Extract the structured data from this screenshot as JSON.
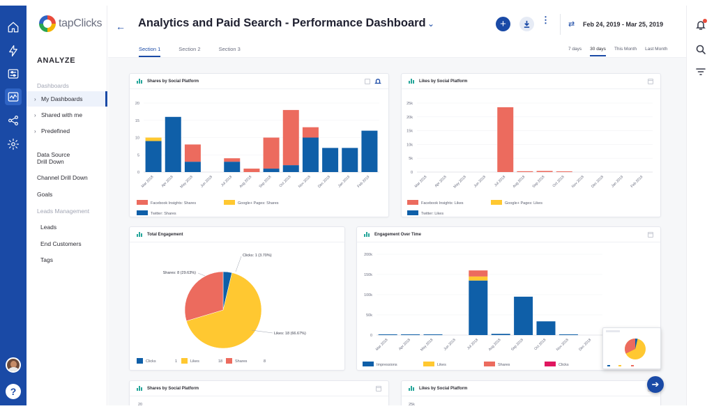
{
  "app": {
    "brand": "tapClicks",
    "section": "ANALYZE",
    "title": "Analytics and Paid Search - Performance Dashboard",
    "date_range": "Feb 24, 2019 - Mar 25, 2019"
  },
  "rail": {
    "icons": [
      "home-icon",
      "bolt-icon",
      "sliders-icon",
      "analytics-icon",
      "share-nodes-icon",
      "gear-icon"
    ],
    "active": 3,
    "help_label": "?"
  },
  "sidebar": {
    "items": [
      {
        "label": "Dashboards",
        "kind": "header"
      },
      {
        "label": "My Dashboards",
        "kind": "sub",
        "active": true
      },
      {
        "label": "Shared with me",
        "kind": "sub"
      },
      {
        "label": "Predefined",
        "kind": "sub"
      },
      {
        "label": "Data Source\nDrill Down",
        "kind": "item"
      },
      {
        "label": "Channel Drill Down",
        "kind": "item"
      },
      {
        "label": "Goals",
        "kind": "item"
      },
      {
        "label": "Leads Management",
        "kind": "header"
      },
      {
        "label": "Leads",
        "kind": "child"
      },
      {
        "label": "End Customers",
        "kind": "child"
      },
      {
        "label": "Tags",
        "kind": "child"
      }
    ]
  },
  "header": {
    "back_label": "←",
    "chevron_label": "⌄",
    "add_label": "+",
    "more_label": "⋮",
    "swap_label": "⇄",
    "tabs": [
      {
        "label": "Section 1",
        "active": true
      },
      {
        "label": "Section 2"
      },
      {
        "label": "Section 3"
      }
    ],
    "ranges": [
      {
        "label": "7 days"
      },
      {
        "label": "30 days",
        "active": true
      },
      {
        "label": "This Month"
      },
      {
        "label": "Last Month"
      }
    ]
  },
  "colors": {
    "brand_blue": "#1a4aa6",
    "series_blue": "#0f5fa8",
    "series_red": "#ec6b5e",
    "series_yellow": "#ffc831",
    "series_pink": "#e0165f"
  },
  "cards": {
    "shares": {
      "title": "Shares by Social Platform"
    },
    "likes": {
      "title": "Likes by Social Platform"
    },
    "engagement": {
      "title": "Total Engagement"
    },
    "over_time": {
      "title": "Engagement Over Time"
    },
    "shares2": {
      "title": "Shares by Social Platform"
    },
    "likes2": {
      "title": "Likes by Social Platform"
    }
  },
  "floating": {
    "next_label": "➔"
  },
  "chart_data": [
    {
      "type": "bar",
      "stacked": true,
      "title": "Shares by Social Platform",
      "categories": [
        "Mar 2018",
        "Apr 2018",
        "May 2018",
        "Jun 2018",
        "Jul 2018",
        "Aug 2018",
        "Sep 2018",
        "Oct 2018",
        "Nov 2018",
        "Dec 2018",
        "Jan 2019",
        "Feb 2019"
      ],
      "ylim": [
        0,
        20
      ],
      "yticks": [
        "0",
        "5",
        "10",
        "15",
        "20"
      ],
      "series": [
        {
          "name": "Twitter: Shares",
          "color": "#0f5fa8",
          "values": [
            9,
            16,
            3,
            0,
            3,
            0,
            1,
            2,
            10,
            7,
            7,
            12
          ]
        },
        {
          "name": "Google+ Pages: Shares",
          "color": "#ffc831",
          "values": [
            1,
            0,
            0,
            0,
            0,
            0,
            0,
            0,
            0,
            0,
            0,
            0
          ]
        },
        {
          "name": "Facebook Insights: Shares",
          "color": "#ec6b5e",
          "values": [
            0,
            0,
            5,
            0,
            1,
            1,
            9,
            16,
            3,
            0,
            0,
            0
          ]
        }
      ],
      "legend_order": [
        "Facebook Insights: Shares",
        "Google+ Pages: Shares",
        "Twitter: Shares"
      ],
      "legend": "bottom"
    },
    {
      "type": "bar",
      "stacked": true,
      "title": "Likes by Social Platform",
      "categories": [
        "Mar 2018",
        "Apr 2018",
        "May 2018",
        "Jun 2018",
        "Jul 2018",
        "Aug 2018",
        "Sep 2018",
        "Oct 2018",
        "Nov 2018",
        "Dec 2018",
        "Jan 2019",
        "Feb 2019"
      ],
      "ylim": [
        0,
        25000
      ],
      "yticks": [
        "0",
        "5k",
        "10k",
        "15k",
        "20k",
        "25k"
      ],
      "series": [
        {
          "name": "Twitter: Likes",
          "color": "#0f5fa8",
          "values": [
            0,
            0,
            0,
            0,
            0,
            0,
            0,
            0,
            0,
            0,
            0,
            0
          ]
        },
        {
          "name": "Google+ Pages: Likes",
          "color": "#ffc831",
          "values": [
            0,
            0,
            0,
            0,
            0,
            0,
            0,
            0,
            0,
            0,
            0,
            0
          ]
        },
        {
          "name": "Facebook Insights: Likes",
          "color": "#ec6b5e",
          "values": [
            0,
            0,
            0,
            0,
            23500,
            300,
            400,
            200,
            0,
            0,
            0,
            0
          ]
        }
      ],
      "legend_order": [
        "Facebook Insights: Likes",
        "Google+ Pages: Likes",
        "Twitter: Likes"
      ],
      "legend": "bottom"
    },
    {
      "type": "pie",
      "title": "Total Engagement",
      "slices": [
        {
          "name": "Clicks",
          "value": 1,
          "label": "Clicks: 1 (3.70%)",
          "color": "#0f5fa8"
        },
        {
          "name": "Likes",
          "value": 18,
          "label": "Likes: 18 (66.67%)",
          "color": "#ffc831"
        },
        {
          "name": "Shares",
          "value": 8,
          "label": "Shares: 8 (29.63%)",
          "color": "#ec6b5e"
        }
      ],
      "legend": "bottom",
      "legend_values": [
        "1",
        "18",
        "8"
      ]
    },
    {
      "type": "bar",
      "stacked": true,
      "title": "Engagement Over Time",
      "categories": [
        "Mar 2018",
        "Apr 2018",
        "May 2018",
        "Jun 2018",
        "Jul 2018",
        "Aug 2018",
        "Sep 2018",
        "Oct 2018",
        "Nov 2018",
        "Dec 2018"
      ],
      "ylim": [
        0,
        200000
      ],
      "yticks": [
        "0",
        "50k",
        "100k",
        "150k",
        "200k"
      ],
      "series": [
        {
          "name": "Impressions",
          "color": "#0f5fa8",
          "values": [
            1000,
            1000,
            1000,
            0,
            135000,
            3000,
            95000,
            34000,
            1000,
            0
          ]
        },
        {
          "name": "Likes",
          "color": "#ffc831",
          "values": [
            0,
            0,
            0,
            0,
            10000,
            0,
            0,
            0,
            0,
            0
          ]
        },
        {
          "name": "Shares",
          "color": "#ec6b5e",
          "values": [
            0,
            0,
            0,
            0,
            15000,
            0,
            0,
            0,
            0,
            0
          ]
        },
        {
          "name": "Clicks",
          "color": "#e0165f",
          "values": [
            0,
            0,
            0,
            0,
            0,
            0,
            0,
            0,
            0,
            0
          ]
        }
      ],
      "legend": "bottom"
    },
    {
      "type": "bar",
      "title": "Shares by Social Platform",
      "yticks": [
        "20"
      ]
    },
    {
      "type": "bar",
      "title": "Likes by Social Platform",
      "yticks": [
        "25k"
      ]
    }
  ]
}
